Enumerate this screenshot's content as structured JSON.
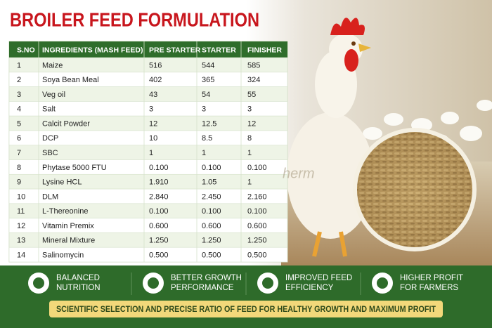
{
  "header": {
    "title": "BROILER FEED FORMULATION"
  },
  "table": {
    "columns": [
      "S.NO",
      "INGREDIENTS (MASH FEED)",
      "PRE STARTER",
      "STARTER",
      "FINISHER"
    ],
    "rows": [
      [
        "1",
        "Maize",
        "516",
        "544",
        "585"
      ],
      [
        "2",
        "Soya Bean Meal",
        "402",
        "365",
        "324"
      ],
      [
        "3",
        "Veg oil",
        "43",
        "54",
        "55"
      ],
      [
        "4",
        "Salt",
        "3",
        "3",
        "3"
      ],
      [
        "5",
        "Calcit Powder",
        "12",
        "12.5",
        "12"
      ],
      [
        "6",
        "DCP",
        "10",
        "8.5",
        "8"
      ],
      [
        "7",
        "SBC",
        "1",
        "1",
        "1"
      ],
      [
        "8",
        "Phytase 5000 FTU",
        "0.100",
        "0.100",
        "0.100"
      ],
      [
        "9",
        "Lysine HCL",
        "1.910",
        "1.05",
        "1"
      ],
      [
        "10",
        "DLM",
        "2.840",
        "2.450",
        "2.160"
      ],
      [
        "11",
        "L-Thereonine",
        "0.100",
        "0.100",
        "0.100"
      ],
      [
        "12",
        "Vitamin Premix",
        "0.600",
        "0.600",
        "0.600"
      ],
      [
        "13",
        "Mineral Mixture",
        "1.250",
        "1.250",
        "1.250"
      ],
      [
        "14",
        "Salinomycin",
        "0.500",
        "0.500",
        "0.500"
      ]
    ]
  },
  "watermark": "herm",
  "features": [
    {
      "line1": "BALANCED",
      "line2": "NUTRITION"
    },
    {
      "line1": "BETTER GROWTH",
      "line2": "PERFORMANCE"
    },
    {
      "line1": "IMPROVED FEED",
      "line2": "EFFICIENCY"
    },
    {
      "line1": "HIGHER PROFIT",
      "line2": "FOR FARMERS"
    }
  ],
  "banner": "SCIENTIFIC SELECTION AND PRECISE RATIO OF FEED FOR HEALTHY GROWTH AND MAXIMUM PROFIT"
}
